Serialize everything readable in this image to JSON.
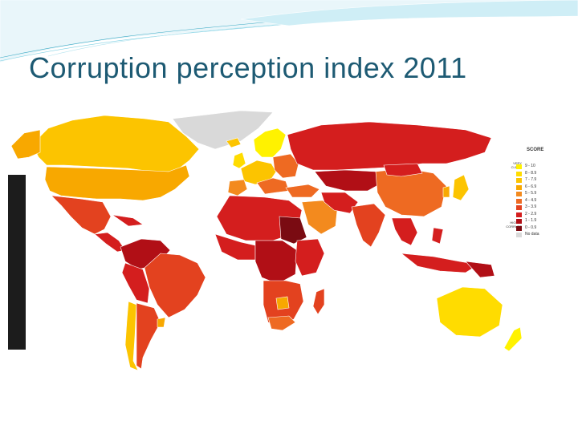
{
  "slide": {
    "title": "Corruption perception index 2011"
  },
  "legend": {
    "title": "SCORE",
    "clean_label": "VERY CLEAN",
    "corrupt_label": "HIGHLY CORRUPT",
    "items": [
      {
        "label": "9 - 10",
        "color": "#fff200"
      },
      {
        "label": "8 - 8.9",
        "color": "#ffdc00"
      },
      {
        "label": "7 - 7.9",
        "color": "#fcc400"
      },
      {
        "label": "6 - 6.9",
        "color": "#f8a800"
      },
      {
        "label": "5 - 5.9",
        "color": "#f38a1e"
      },
      {
        "label": "4 - 4.9",
        "color": "#ee6a22"
      },
      {
        "label": "3 - 3.9",
        "color": "#e3421f"
      },
      {
        "label": "2 - 2.9",
        "color": "#d41e1e"
      },
      {
        "label": "1 - 1.9",
        "color": "#b10f16"
      },
      {
        "label": "0 - 0.9",
        "color": "#7a0b12"
      },
      {
        "label": "No data",
        "color": "#d9d9d9"
      }
    ]
  },
  "colors": {
    "title": "#1d5a73",
    "banner_teal": "#3aa9c4"
  }
}
